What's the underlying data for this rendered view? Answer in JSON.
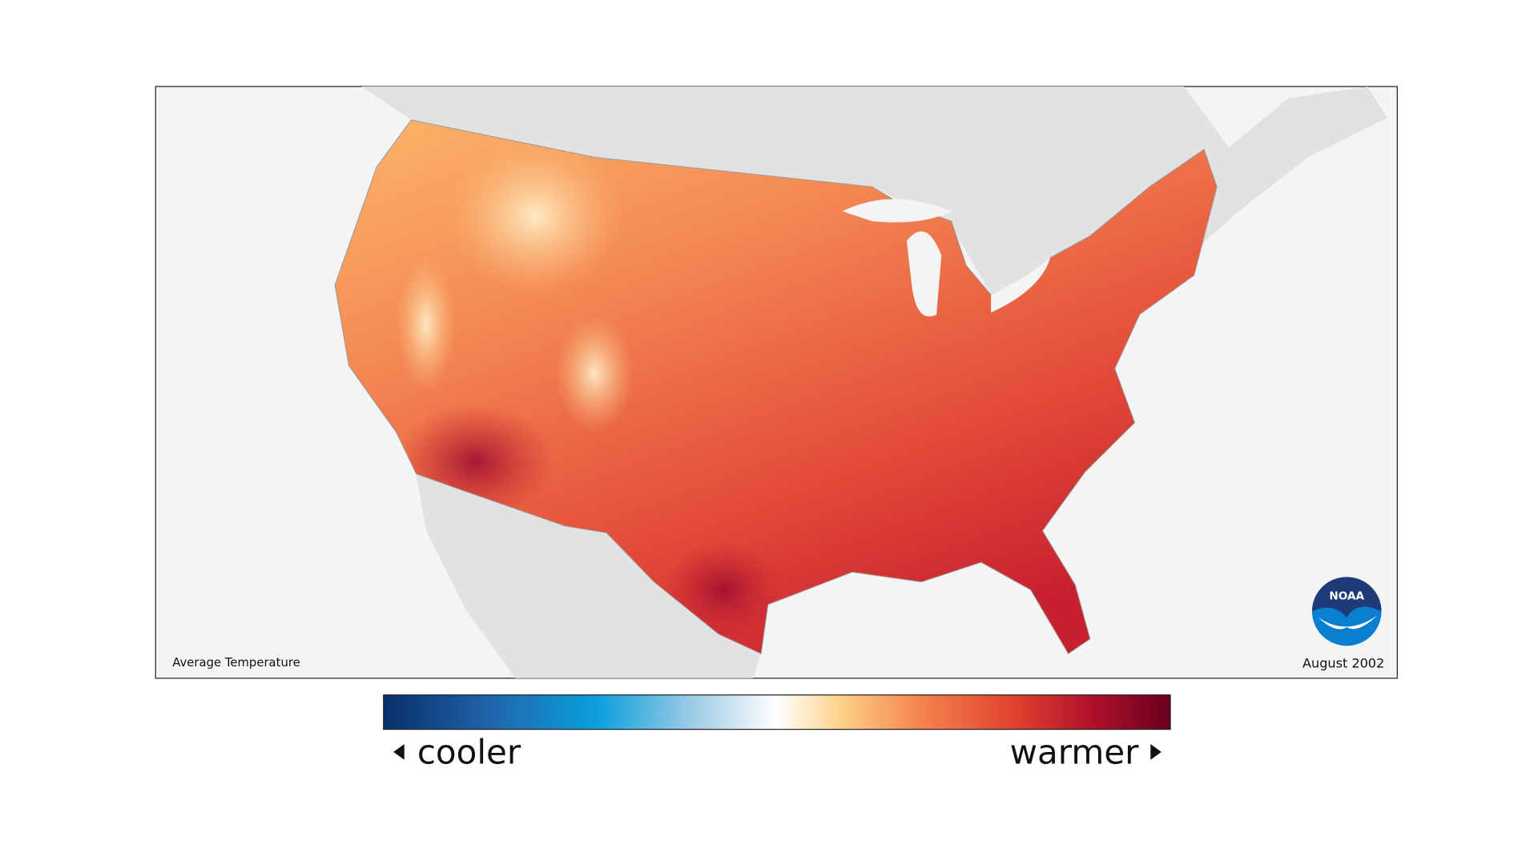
{
  "map": {
    "caption": "Average Temperature",
    "date": "August 2002",
    "logo": "NOAA"
  },
  "legend": {
    "low_label": "cooler",
    "high_label": "warmer"
  }
}
